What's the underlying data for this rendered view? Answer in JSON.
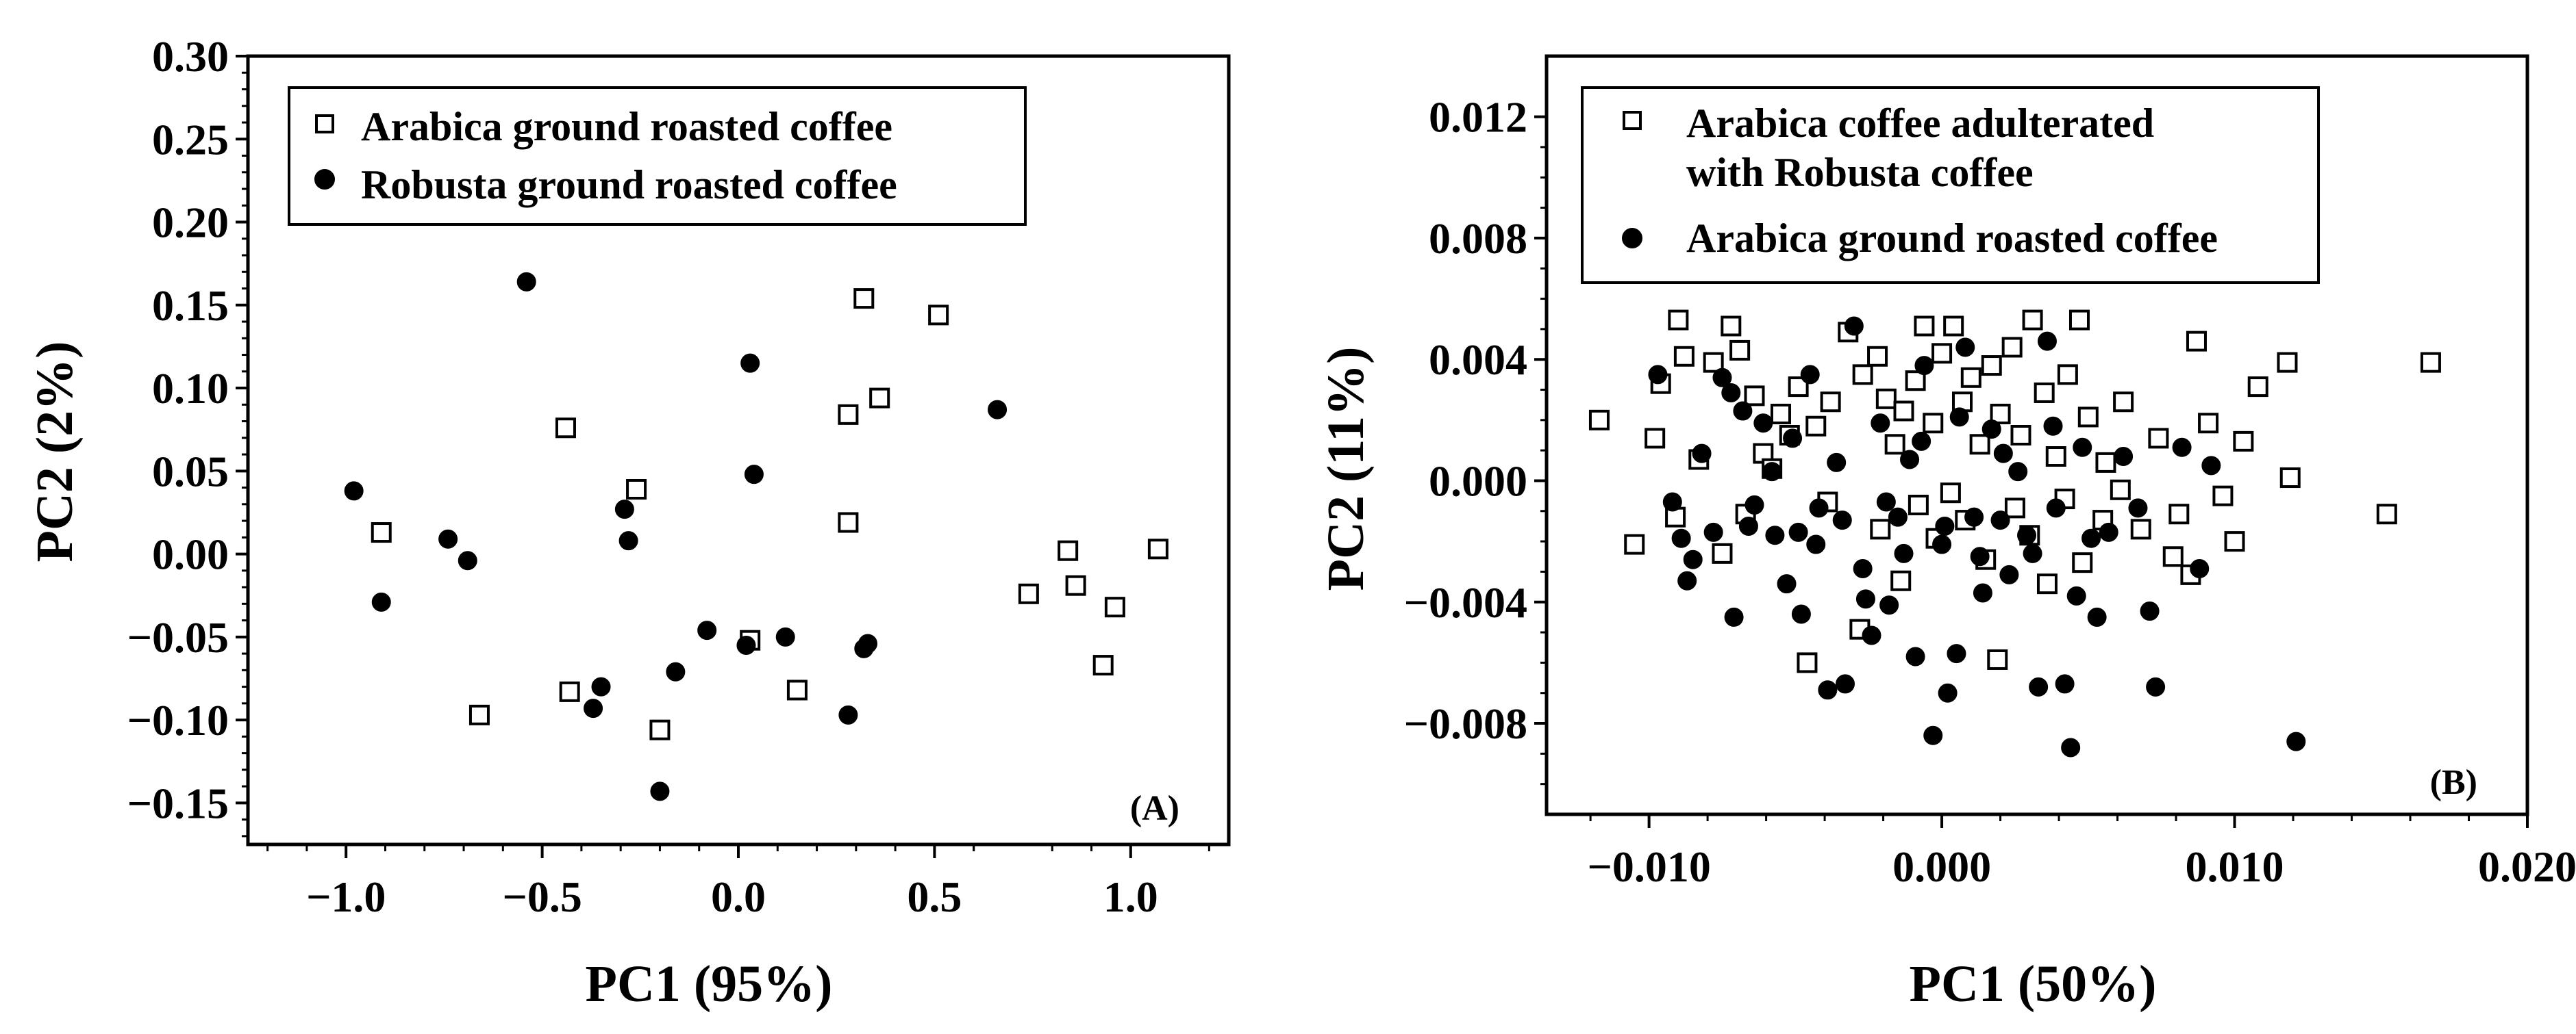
{
  "chart_data": [
    {
      "type": "scatter",
      "panel_label": "(A)",
      "title": "",
      "xlabel": "PC1 (95%)",
      "ylabel": "PC2 (2%)",
      "xlim": [
        -1.25,
        1.25
      ],
      "ylim": [
        -0.175,
        0.3
      ],
      "xticks": [
        -1.0,
        -0.5,
        0.0,
        0.5,
        1.0
      ],
      "xtick_labels": [
        "−1.0",
        "−0.5",
        "0.0",
        "0.5",
        "1.0"
      ],
      "yticks": [
        -0.15,
        -0.1,
        -0.05,
        0.0,
        0.05,
        0.1,
        0.15,
        0.2,
        0.25,
        0.3
      ],
      "ytick_labels": [
        "−0.15",
        "−0.10",
        "−0.05",
        "0.00",
        "0.05",
        "0.10",
        "0.15",
        "0.20",
        "0.25",
        "0.30"
      ],
      "legend_position": "top-left",
      "series": [
        {
          "name": "Arabica ground roasted coffee",
          "marker": "open-square",
          "points": [
            [
              0.32,
              0.154
            ],
            [
              0.51,
              0.144
            ],
            [
              0.36,
              0.094
            ],
            [
              0.28,
              0.084
            ],
            [
              -0.44,
              0.076
            ],
            [
              -0.26,
              0.039
            ],
            [
              0.28,
              0.019
            ],
            [
              -0.91,
              0.013
            ],
            [
              0.84,
              0.002
            ],
            [
              1.07,
              0.003
            ],
            [
              0.86,
              -0.019
            ],
            [
              0.74,
              -0.024
            ],
            [
              0.96,
              -0.032
            ],
            [
              0.03,
              -0.052
            ],
            [
              0.93,
              -0.067
            ],
            [
              -0.43,
              -0.083
            ],
            [
              0.15,
              -0.082
            ],
            [
              -0.66,
              -0.097
            ],
            [
              -0.2,
              -0.106
            ]
          ]
        },
        {
          "name": "Robusta ground roasted coffee",
          "marker": "filled-circle",
          "points": [
            [
              -0.54,
              0.164
            ],
            [
              0.03,
              0.115
            ],
            [
              0.66,
              0.087
            ],
            [
              0.04,
              0.048
            ],
            [
              -0.98,
              0.038
            ],
            [
              -0.29,
              0.027
            ],
            [
              -0.28,
              0.008
            ],
            [
              -0.74,
              0.009
            ],
            [
              -0.69,
              -0.004
            ],
            [
              -0.91,
              -0.029
            ],
            [
              -0.08,
              -0.046
            ],
            [
              0.12,
              -0.05
            ],
            [
              0.02,
              -0.055
            ],
            [
              0.33,
              -0.054
            ],
            [
              0.32,
              -0.057
            ],
            [
              -0.16,
              -0.071
            ],
            [
              -0.35,
              -0.08
            ],
            [
              -0.37,
              -0.093
            ],
            [
              0.28,
              -0.097
            ],
            [
              -0.2,
              -0.143
            ]
          ]
        }
      ]
    },
    {
      "type": "scatter",
      "panel_label": "(B)",
      "title": "",
      "xlabel": "PC1 (50%)",
      "ylabel": "PC2 (11%)",
      "xlim": [
        -0.0135,
        0.02
      ],
      "ylim": [
        -0.011,
        0.014
      ],
      "xticks": [
        -0.01,
        0.0,
        0.01,
        0.02
      ],
      "xtick_labels": [
        "−0.010",
        "0.000",
        "0.010",
        "0.020"
      ],
      "yticks": [
        -0.008,
        -0.004,
        0.0,
        0.004,
        0.008,
        0.012
      ],
      "ytick_labels": [
        "−0.008",
        "−0.004",
        "0.000",
        "0.004",
        "0.008",
        "0.012"
      ],
      "legend_position": "top-left",
      "series": [
        {
          "name_lines": [
            "Arabica coffee adulterated",
            "with Robusta coffee"
          ],
          "marker": "open-square",
          "points": [
            [
              -0.0117,
              0.002
            ],
            [
              -0.0105,
              -0.0021
            ],
            [
              -0.0098,
              0.0014
            ],
            [
              -0.0096,
              0.0032
            ],
            [
              -0.009,
              0.0053
            ],
            [
              -0.0088,
              0.0041
            ],
            [
              -0.0078,
              0.0039
            ],
            [
              -0.0072,
              0.0051
            ],
            [
              -0.0069,
              0.0043
            ],
            [
              -0.0064,
              0.0028
            ],
            [
              -0.0061,
              0.0009
            ],
            [
              -0.0055,
              0.0022
            ],
            [
              -0.0052,
              0.0015
            ],
            [
              -0.0049,
              0.0031
            ],
            [
              -0.0043,
              0.0018
            ],
            [
              -0.0038,
              0.0026
            ],
            [
              -0.0032,
              0.0049
            ],
            [
              -0.0027,
              0.0035
            ],
            [
              -0.0022,
              0.0041
            ],
            [
              -0.0019,
              0.0027
            ],
            [
              -0.0016,
              0.0012
            ],
            [
              -0.0013,
              0.0023
            ],
            [
              -0.0009,
              0.0033
            ],
            [
              -0.0006,
              0.0051
            ],
            [
              -0.0003,
              0.0019
            ],
            [
              0.0,
              0.0042
            ],
            [
              0.0004,
              0.0051
            ],
            [
              0.0007,
              0.0026
            ],
            [
              0.001,
              0.0034
            ],
            [
              0.0013,
              0.0012
            ],
            [
              0.0017,
              0.0038
            ],
            [
              0.002,
              0.0022
            ],
            [
              0.0024,
              0.0044
            ],
            [
              0.0027,
              0.0015
            ],
            [
              0.0031,
              0.0053
            ],
            [
              0.0035,
              0.0029
            ],
            [
              0.0039,
              0.0008
            ],
            [
              0.0043,
              0.0035
            ],
            [
              0.0047,
              0.0053
            ],
            [
              0.005,
              0.0021
            ],
            [
              0.0056,
              0.0006
            ],
            [
              0.0062,
              0.0026
            ],
            [
              0.0068,
              -0.0016
            ],
            [
              0.0074,
              0.0014
            ],
            [
              0.0081,
              -0.0011
            ],
            [
              0.0087,
              0.0046
            ],
            [
              0.0091,
              0.0019
            ],
            [
              0.0096,
              -0.0005
            ],
            [
              0.01,
              -0.002
            ],
            [
              0.0103,
              0.0013
            ],
            [
              0.0108,
              0.0031
            ],
            [
              0.0118,
              0.0039
            ],
            [
              0.0119,
              0.0001
            ],
            [
              0.0152,
              -0.0011
            ],
            [
              0.0167,
              0.0039
            ],
            [
              -0.0091,
              -0.0012
            ],
            [
              -0.0083,
              0.0007
            ],
            [
              -0.0075,
              -0.0024
            ],
            [
              -0.0067,
              -0.0011
            ],
            [
              -0.0058,
              0.0004
            ],
            [
              -0.0046,
              -0.006
            ],
            [
              -0.0039,
              -0.0007
            ],
            [
              -0.0028,
              -0.0049
            ],
            [
              -0.0021,
              -0.0016
            ],
            [
              -0.0014,
              -0.0033
            ],
            [
              -0.0008,
              -0.0008
            ],
            [
              -0.0002,
              -0.0019
            ],
            [
              0.0003,
              -0.0004
            ],
            [
              0.0008,
              -0.0013
            ],
            [
              0.0015,
              -0.0026
            ],
            [
              0.0019,
              -0.0059
            ],
            [
              0.0025,
              -0.0009
            ],
            [
              0.003,
              -0.0018
            ],
            [
              0.0036,
              -0.0034
            ],
            [
              0.0042,
              -0.0006
            ],
            [
              0.0048,
              -0.0027
            ],
            [
              0.0055,
              -0.0013
            ],
            [
              0.0061,
              -0.0003
            ],
            [
              0.0079,
              -0.0025
            ],
            [
              0.0085,
              -0.0031
            ]
          ]
        },
        {
          "name": "Arabica ground roasted coffee",
          "marker": "filled-circle",
          "points": [
            [
              -0.0097,
              0.0035
            ],
            [
              -0.0092,
              -0.0007
            ],
            [
              -0.0089,
              -0.0019
            ],
            [
              -0.0087,
              -0.0033
            ],
            [
              -0.0082,
              0.0009
            ],
            [
              -0.0078,
              -0.0017
            ],
            [
              -0.0075,
              0.0034
            ],
            [
              -0.0071,
              -0.0045
            ],
            [
              -0.0068,
              0.0023
            ],
            [
              -0.0064,
              -0.0008
            ],
            [
              -0.0061,
              0.0019
            ],
            [
              -0.0057,
              -0.0018
            ],
            [
              -0.0053,
              -0.0034
            ],
            [
              -0.0051,
              0.0014
            ],
            [
              -0.0048,
              -0.0044
            ],
            [
              -0.0045,
              0.0035
            ],
            [
              -0.0043,
              -0.0021
            ],
            [
              -0.0039,
              -0.0069
            ],
            [
              -0.0036,
              0.0006
            ],
            [
              -0.0033,
              -0.0067
            ],
            [
              -0.003,
              0.0051
            ],
            [
              -0.0027,
              -0.0029
            ],
            [
              -0.0024,
              -0.0051
            ],
            [
              -0.0021,
              0.0019
            ],
            [
              -0.0018,
              -0.0041
            ],
            [
              -0.0015,
              -0.0012
            ],
            [
              -0.0011,
              0.0007
            ],
            [
              -0.0009,
              -0.0058
            ],
            [
              -0.0006,
              0.0038
            ],
            [
              -0.0003,
              -0.0084
            ],
            [
              0.0,
              -0.0021
            ],
            [
              0.0002,
              -0.007
            ],
            [
              0.0005,
              -0.0057
            ],
            [
              0.0008,
              0.0044
            ],
            [
              0.0011,
              -0.0012
            ],
            [
              0.0014,
              -0.0037
            ],
            [
              0.0017,
              0.0017
            ],
            [
              0.002,
              -0.0013
            ],
            [
              0.0023,
              -0.0031
            ],
            [
              0.0026,
              0.0003
            ],
            [
              0.0029,
              -0.0018
            ],
            [
              0.0033,
              -0.0068
            ],
            [
              0.0036,
              0.0046
            ],
            [
              0.0039,
              -0.0009
            ],
            [
              0.0042,
              -0.0067
            ],
            [
              0.0044,
              -0.0088
            ],
            [
              0.0048,
              0.0011
            ],
            [
              0.0053,
              -0.0045
            ],
            [
              0.0057,
              -0.0017
            ],
            [
              0.0062,
              0.0008
            ],
            [
              0.0067,
              -0.0009
            ],
            [
              0.0071,
              -0.0043
            ],
            [
              0.0073,
              -0.0068
            ],
            [
              0.0082,
              0.0011
            ],
            [
              0.0088,
              -0.0029
            ],
            [
              0.0092,
              0.0005
            ],
            [
              0.0121,
              -0.0086
            ],
            [
              -0.0085,
              -0.0026
            ],
            [
              -0.0072,
              0.0029
            ],
            [
              -0.0066,
              -0.0015
            ],
            [
              -0.0058,
              0.0003
            ],
            [
              -0.0049,
              -0.0017
            ],
            [
              -0.0042,
              -0.0009
            ],
            [
              -0.0034,
              -0.0013
            ],
            [
              -0.0026,
              -0.0039
            ],
            [
              -0.0019,
              -0.0007
            ],
            [
              -0.0013,
              -0.0024
            ],
            [
              -0.0007,
              0.0013
            ],
            [
              0.0001,
              -0.0015
            ],
            [
              0.0006,
              0.0021
            ],
            [
              0.0013,
              -0.0025
            ],
            [
              0.0021,
              0.0009
            ],
            [
              0.0031,
              -0.0024
            ],
            [
              0.0038,
              0.0018
            ],
            [
              0.0046,
              -0.0038
            ],
            [
              0.0051,
              -0.0019
            ]
          ]
        }
      ]
    }
  ]
}
